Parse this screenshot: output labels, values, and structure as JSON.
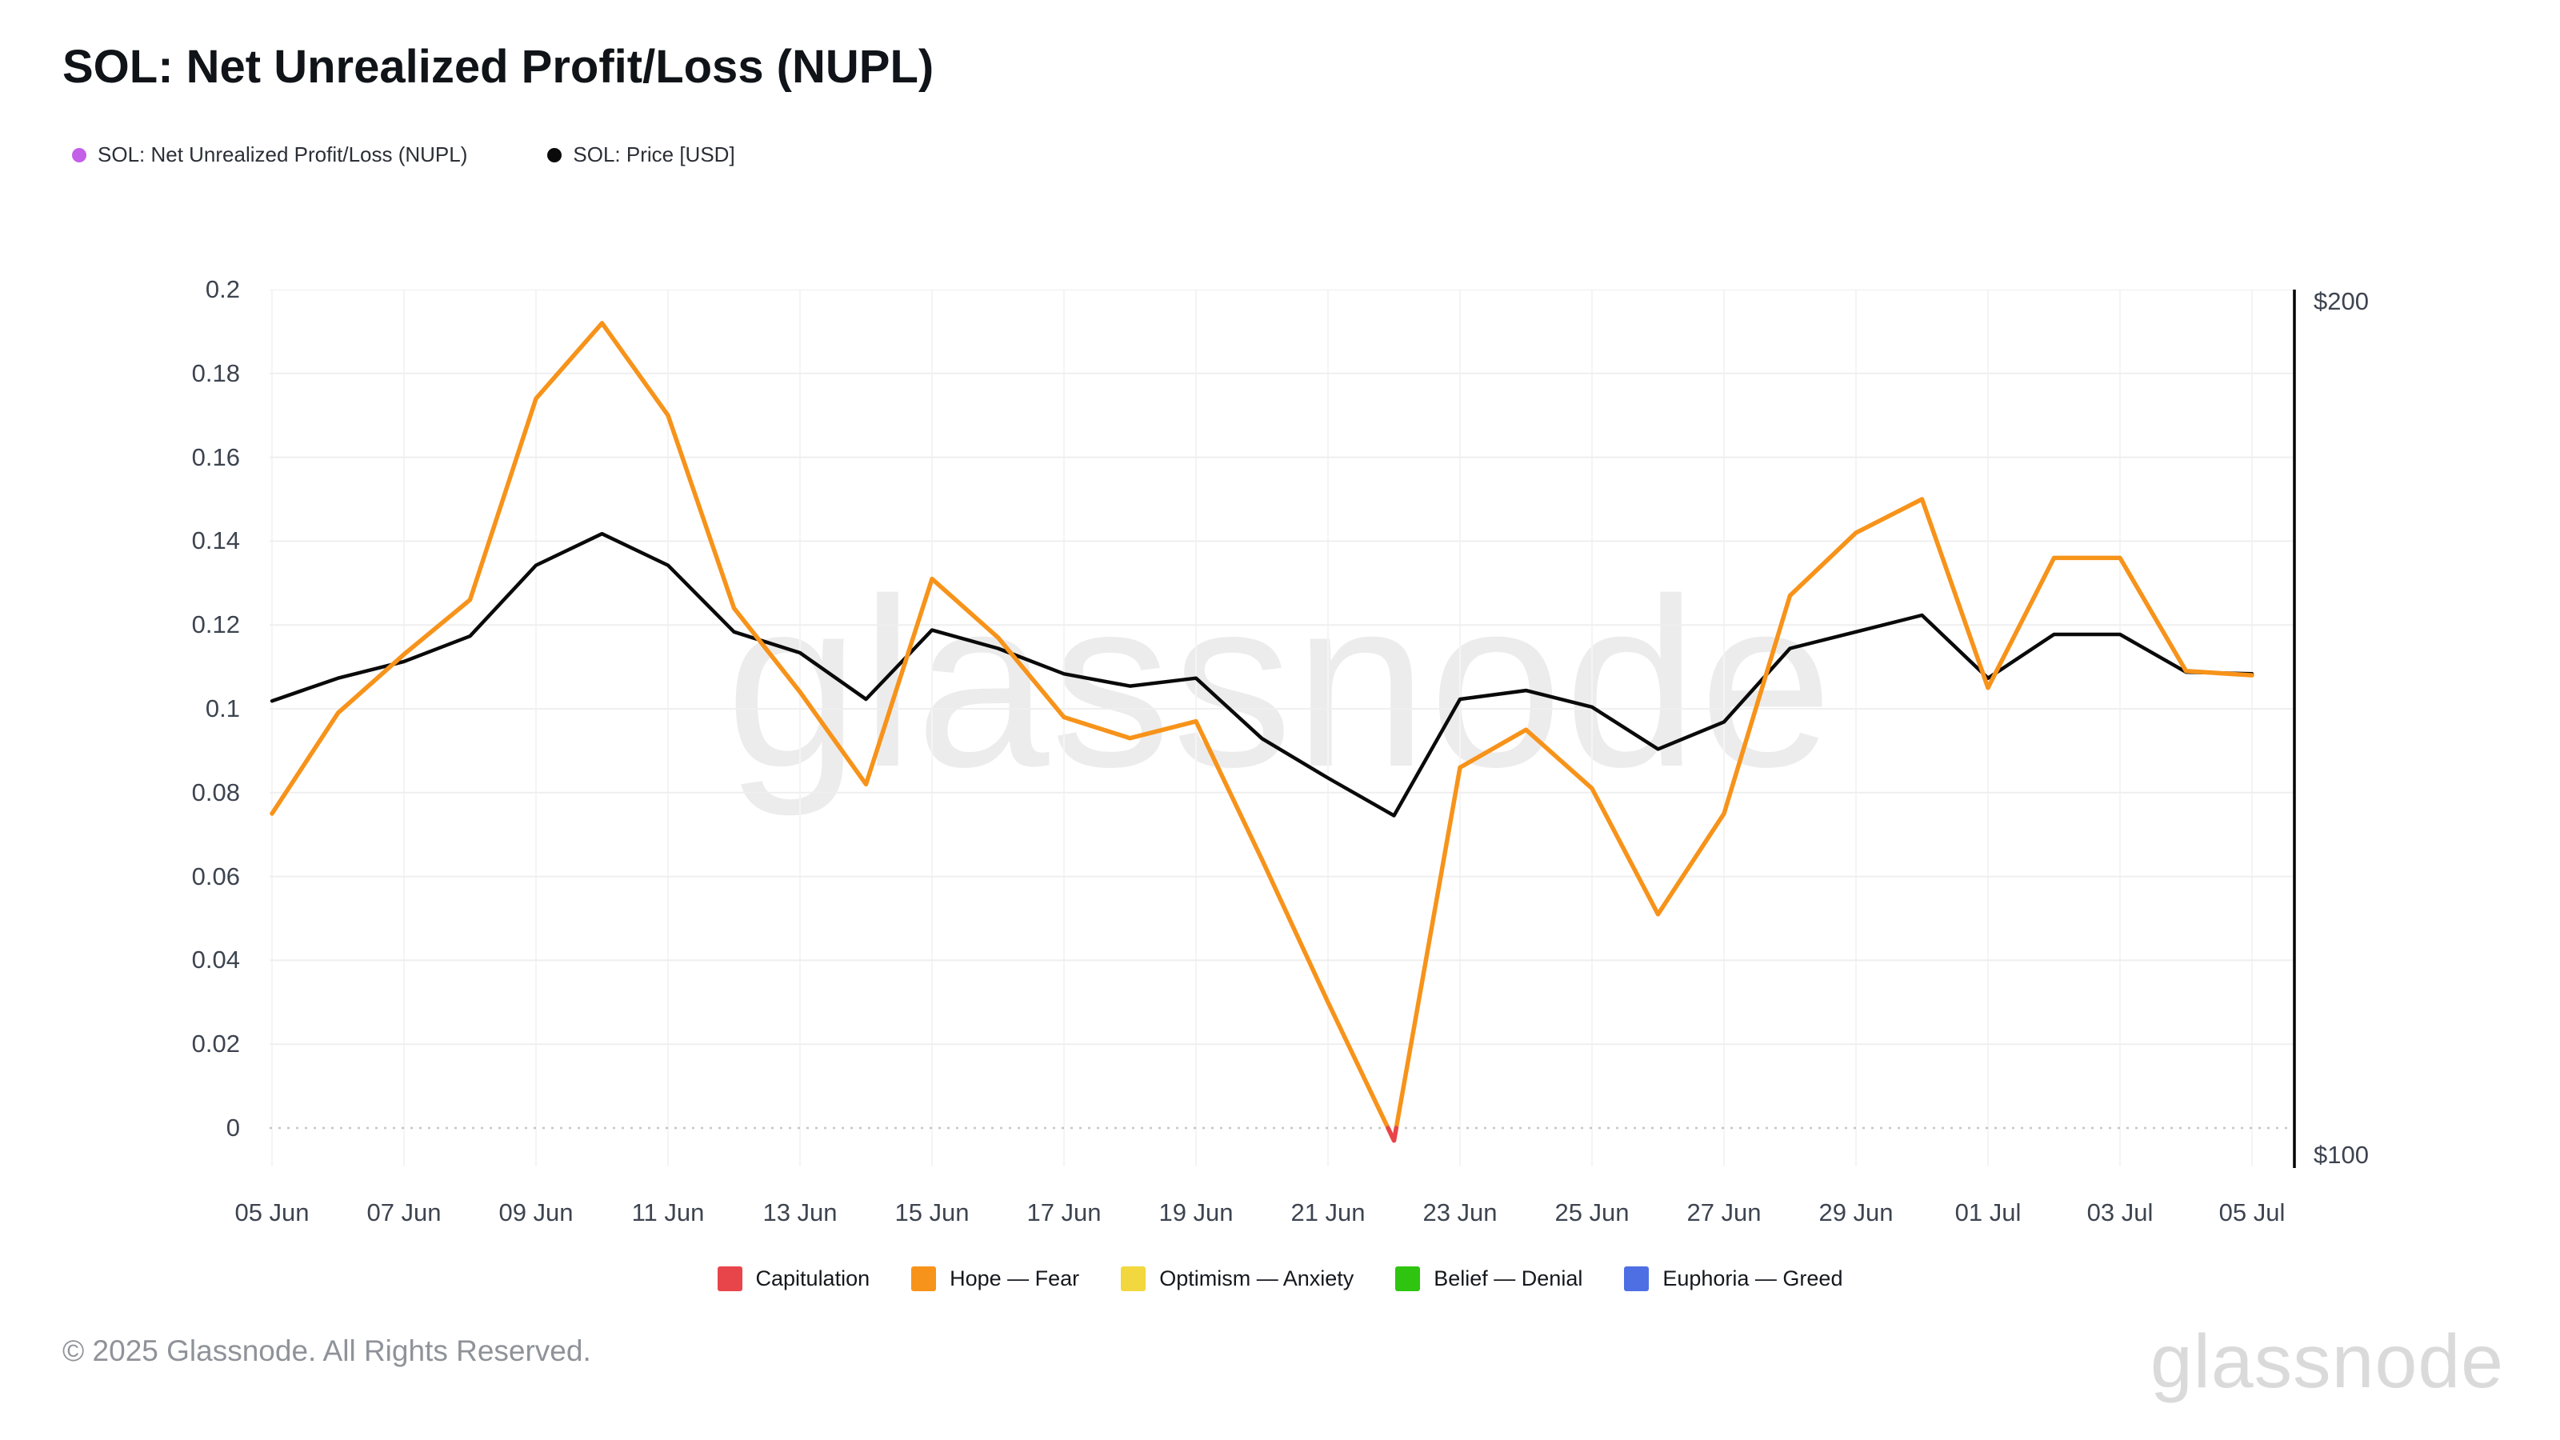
{
  "title": "SOL: Net Unrealized Profit/Loss (NUPL)",
  "top_legend": [
    {
      "label": "SOL: Net Unrealized Profit/Loss (NUPL)",
      "color": "#C45FE8"
    },
    {
      "label": "SOL: Price [USD]",
      "color": "#0A0A0A"
    }
  ],
  "chart_data": {
    "type": "line",
    "x": [
      "05 Jun",
      "06 Jun",
      "07 Jun",
      "08 Jun",
      "09 Jun",
      "10 Jun",
      "11 Jun",
      "12 Jun",
      "13 Jun",
      "14 Jun",
      "15 Jun",
      "16 Jun",
      "17 Jun",
      "18 Jun",
      "19 Jun",
      "20 Jun",
      "21 Jun",
      "22 Jun",
      "23 Jun",
      "24 Jun",
      "25 Jun",
      "26 Jun",
      "27 Jun",
      "28 Jun",
      "29 Jun",
      "30 Jun",
      "01 Jul",
      "02 Jul",
      "03 Jul",
      "04 Jul",
      "05 Jul"
    ],
    "series": [
      {
        "name": "SOL: Net Unrealized Profit/Loss (NUPL)",
        "axis": "left",
        "color": "#F7931A",
        "below_zero_color": "#E8454B",
        "values": [
          0.075,
          0.099,
          0.113,
          0.126,
          0.174,
          0.192,
          0.17,
          0.124,
          0.104,
          0.082,
          0.131,
          0.117,
          0.098,
          0.093,
          0.097,
          0.064,
          0.03,
          -0.003,
          0.086,
          0.095,
          0.081,
          0.051,
          0.075,
          0.127,
          0.142,
          0.15,
          0.105,
          0.136,
          0.136,
          0.109,
          0.108
        ]
      },
      {
        "name": "SOL: Price [USD]",
        "axis": "right",
        "color": "#0A0A0A",
        "values": [
          153.0,
          155.6,
          157.5,
          160.4,
          168.5,
          172.1,
          168.5,
          160.9,
          158.5,
          153.2,
          161.1,
          159.0,
          156.1,
          154.7,
          155.6,
          148.7,
          144.2,
          139.9,
          153.2,
          154.2,
          152.3,
          147.5,
          150.6,
          159.0,
          160.9,
          162.8,
          155.6,
          160.6,
          160.6,
          156.3,
          156.1
        ]
      }
    ],
    "left_axis": {
      "min": 0,
      "max": 0.2,
      "ticks": [
        "0.2",
        "0.18",
        "0.16",
        "0.14",
        "0.12",
        "0.1",
        "0.08",
        "0.06",
        "0.04",
        "0.02",
        "0"
      ],
      "zero_line_style": "dotted"
    },
    "right_axis": {
      "min": 100,
      "max": 200,
      "ticks": [
        "$200",
        "$100"
      ]
    },
    "x_axis": {
      "ticks": [
        "05 Jun",
        "07 Jun",
        "09 Jun",
        "11 Jun",
        "13 Jun",
        "15 Jun",
        "17 Jun",
        "19 Jun",
        "21 Jun",
        "23 Jun",
        "25 Jun",
        "27 Jun",
        "29 Jun",
        "01 Jul",
        "03 Jul",
        "05 Jul"
      ]
    },
    "grid": "horizontal-and-vertical-light",
    "legend_position": "bottom-center",
    "watermark": "glassnode"
  },
  "zone_legend": [
    {
      "label": "Capitulation",
      "color": "#E8454B"
    },
    {
      "label": "Hope — Fear",
      "color": "#F7931A"
    },
    {
      "label": "Optimism — Anxiety",
      "color": "#F2D73E"
    },
    {
      "label": "Belief — Denial",
      "color": "#2FC40F"
    },
    {
      "label": "Euphoria — Greed",
      "color": "#4E6FE3"
    }
  ],
  "footer": {
    "copyright": "© 2025 Glassnode. All Rights Reserved.",
    "brand": "glassnode"
  },
  "colors": {
    "grid_h": "#efefef",
    "grid_v": "#f4f4f4",
    "zero_dotted": "#c6c6c6",
    "axis_line": "#000000",
    "tick_text": "#3d4450",
    "watermark": "#ececec"
  }
}
